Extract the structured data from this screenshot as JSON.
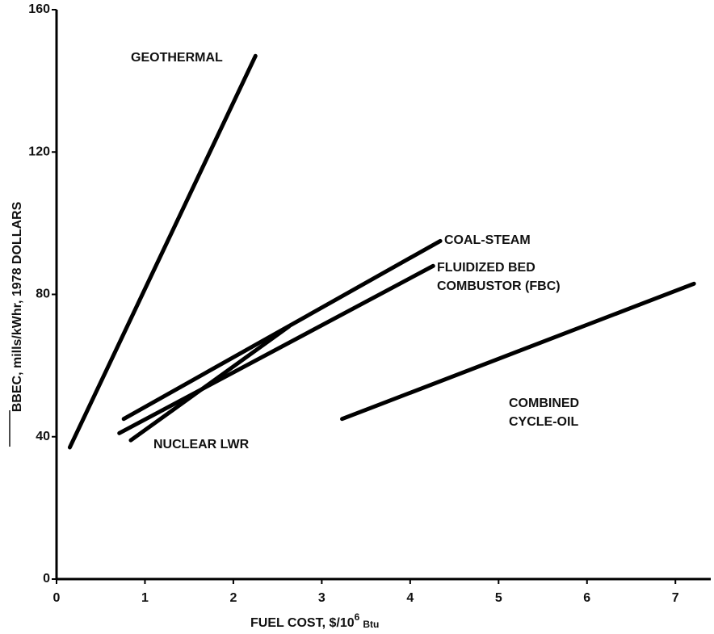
{
  "chart_data": {
    "type": "line",
    "y_label": "BBEC, mills/kWhr, 1978 DOLLARS",
    "x_label": {
      "text": "FUEL COST, $/10",
      "sup": "6",
      "unit": "Btu"
    },
    "xlim": [
      0,
      7.4
    ],
    "xticks": [
      0,
      1,
      2,
      3,
      4,
      5,
      6,
      7
    ],
    "ylim": [
      0,
      160
    ],
    "yticks": [
      0,
      40,
      80,
      120,
      160
    ],
    "grid": false,
    "series": [
      {
        "label": [
          "GEOTHERMAL"
        ],
        "color": "#000000",
        "x": [
          0.15,
          2.25
        ],
        "values": [
          37,
          147
        ]
      },
      {
        "label": [
          "COAL-STEAM"
        ],
        "color": "#000000",
        "x": [
          0.76,
          4.34
        ],
        "values": [
          45,
          95
        ]
      },
      {
        "label": [
          "FLUIDIZED BED",
          "COMBUSTOR (FBC)"
        ],
        "color": "#000000",
        "x": [
          0.71,
          4.26
        ],
        "values": [
          41,
          88
        ]
      },
      {
        "label": [
          "NUCLEAR LWR"
        ],
        "color": "#000000",
        "x": [
          0.84,
          2.63
        ],
        "values": [
          39,
          71
        ]
      },
      {
        "label": [
          "COMBINED",
          "CYCLE-OIL"
        ],
        "color": "#000000",
        "x": [
          3.23,
          7.21
        ],
        "values": [
          45,
          83
        ]
      }
    ]
  }
}
